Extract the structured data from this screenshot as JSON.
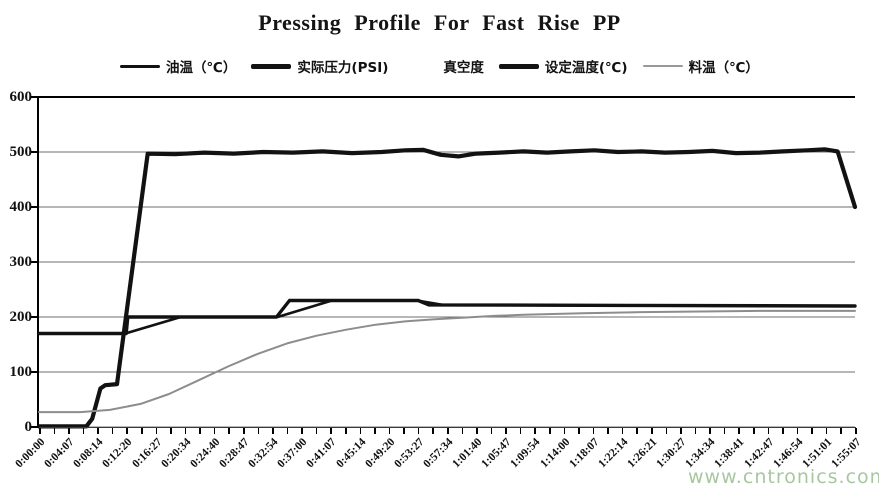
{
  "watermark": "www.cntronics.com",
  "colors": {
    "line_black": "#121212",
    "series_gray": "#8d8d8d",
    "grid": "#6f6f6f",
    "axis": "#000000",
    "watermark": "#a8c79f"
  },
  "chart_data": {
    "type": "line",
    "title": "Pressing  Profile  For Fast Rise PP",
    "grid": "horizontal",
    "legend_position": "top",
    "y_axis": {
      "min": 0,
      "max": 600,
      "step": 100,
      "ticks": [
        "600",
        "500",
        "400",
        "300",
        "200",
        "100",
        "0"
      ]
    },
    "x_axis": {
      "unit": "h:mm:ss",
      "total_seconds": 6907,
      "minor_tick_count": 57,
      "labels": [
        "0:00:00",
        "0:04:07",
        "0:08:14",
        "0:12:20",
        "0:16:27",
        "0:20:34",
        "0:24:40",
        "0:28:47",
        "0:32:54",
        "0:37:00",
        "0:41:07",
        "0:45:14",
        "0:49:20",
        "0:53:27",
        "0:57:34",
        "1:01:40",
        "1:05:47",
        "1:09:54",
        "1:14:00",
        "1:18:07",
        "1:22:14",
        "1:26:21",
        "1:30:27",
        "1:34:34",
        "1:38:41",
        "1:42:47",
        "1:46:54",
        "1:51:01",
        "1:55:07"
      ]
    },
    "legend": [
      {
        "key": "oil-temp",
        "label": "油温（℃）",
        "sample_color": "#121212",
        "sample_thickness": 3,
        "sample_width": 40
      },
      {
        "key": "actual-pressure",
        "label": "实际压力(PSI)",
        "sample_color": "#121212",
        "sample_thickness": 5,
        "sample_width": 40
      },
      {
        "key": "vacuum",
        "label": "真空度",
        "sample_color": "none",
        "sample_thickness": 0,
        "sample_width": 34
      },
      {
        "key": "set-temp",
        "label": "设定温度(℃)",
        "sample_color": "#121212",
        "sample_thickness": 5,
        "sample_width": 40
      },
      {
        "key": "material-temp",
        "label": "料温（℃）",
        "sample_color": "#999999",
        "sample_thickness": 2.5,
        "sample_width": 40
      }
    ],
    "series": [
      {
        "key": "oil-temp",
        "name": "油温（℃）",
        "color": "#121212",
        "width": 2.6,
        "visible": true,
        "points": [
          [
            0,
            170
          ],
          [
            730,
            170
          ],
          [
            1200,
            200
          ],
          [
            2020,
            200
          ],
          [
            2480,
            230
          ],
          [
            3200,
            230
          ],
          [
            3420,
            222
          ],
          [
            4600,
            221
          ],
          [
            6907,
            220
          ]
        ]
      },
      {
        "key": "actual-pressure",
        "name": "实际压力(PSI)",
        "color": "#121212",
        "width": 4.2,
        "visible": true,
        "points": [
          [
            0,
            1
          ],
          [
            400,
            1
          ],
          [
            450,
            15
          ],
          [
            520,
            70
          ],
          [
            560,
            76
          ],
          [
            660,
            78
          ],
          [
            920,
            497
          ],
          [
            1150,
            496
          ],
          [
            1400,
            499
          ],
          [
            1650,
            497
          ],
          [
            1900,
            500
          ],
          [
            2150,
            499
          ],
          [
            2400,
            501
          ],
          [
            2650,
            498
          ],
          [
            2900,
            500
          ],
          [
            3100,
            503
          ],
          [
            3250,
            504
          ],
          [
            3400,
            495
          ],
          [
            3550,
            492
          ],
          [
            3700,
            497
          ],
          [
            3900,
            499
          ],
          [
            4100,
            501
          ],
          [
            4300,
            499
          ],
          [
            4500,
            501
          ],
          [
            4700,
            503
          ],
          [
            4900,
            500
          ],
          [
            5100,
            501
          ],
          [
            5300,
            499
          ],
          [
            5500,
            500
          ],
          [
            5700,
            502
          ],
          [
            5900,
            498
          ],
          [
            6100,
            499
          ],
          [
            6300,
            501
          ],
          [
            6500,
            503
          ],
          [
            6650,
            505
          ],
          [
            6760,
            501
          ],
          [
            6907,
            400
          ]
        ]
      },
      {
        "key": "vacuum",
        "name": "真空度",
        "color": "none",
        "width": 0,
        "visible": false,
        "points": []
      },
      {
        "key": "set-temp",
        "name": "设定温度(℃)",
        "color": "#121212",
        "width": 3.4,
        "visible": true,
        "points": [
          [
            0,
            170
          ],
          [
            738,
            170
          ],
          [
            752,
            200
          ],
          [
            2010,
            200
          ],
          [
            2120,
            230
          ],
          [
            3210,
            230
          ],
          [
            3300,
            222
          ],
          [
            5000,
            221
          ],
          [
            6907,
            220
          ]
        ]
      },
      {
        "key": "material-temp",
        "name": "料温（℃）",
        "color": "#8d8d8d",
        "width": 2,
        "visible": true,
        "points": [
          [
            0,
            27
          ],
          [
            350,
            27
          ],
          [
            600,
            31
          ],
          [
            860,
            42
          ],
          [
            1100,
            60
          ],
          [
            1350,
            85
          ],
          [
            1600,
            110
          ],
          [
            1850,
            133
          ],
          [
            2100,
            152
          ],
          [
            2350,
            166
          ],
          [
            2600,
            177
          ],
          [
            2850,
            186
          ],
          [
            3100,
            192
          ],
          [
            3350,
            196
          ],
          [
            3600,
            199
          ],
          [
            3850,
            202
          ],
          [
            4100,
            204
          ],
          [
            4600,
            207
          ],
          [
            5100,
            209
          ],
          [
            5600,
            210
          ],
          [
            6100,
            211
          ],
          [
            6907,
            211
          ]
        ]
      }
    ]
  }
}
